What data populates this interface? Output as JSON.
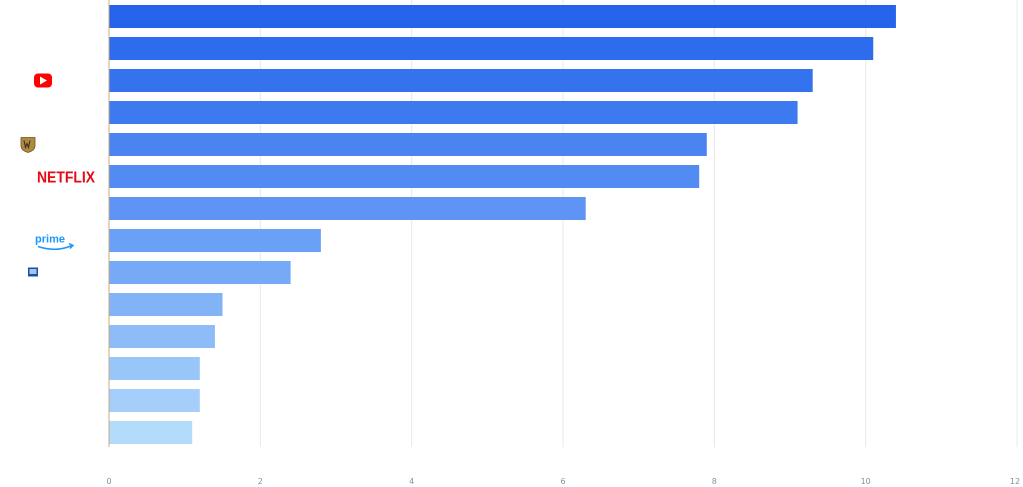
{
  "chart_data": {
    "type": "bar",
    "orientation": "horizontal",
    "categories": [
      "",
      "",
      "YouTube",
      "",
      "Warner Bros",
      "Netflix",
      "",
      "Prime",
      "",
      "",
      "",
      "",
      "",
      ""
    ],
    "values": [
      10.4,
      10.1,
      9.3,
      9.1,
      7.9,
      7.8,
      6.3,
      2.8,
      2.4,
      1.5,
      1.4,
      1.2,
      1.2,
      1.1
    ],
    "xlim": [
      0,
      12
    ],
    "x_ticks": [
      "0",
      "2",
      "4",
      "6",
      "8",
      "10",
      "12"
    ],
    "grid": true,
    "title": "",
    "xlabel": "",
    "ylabel": "",
    "bar_colors": [
      "#2563eb",
      "#2d6ded",
      "#3573ee",
      "#3d7af0",
      "#4a84f1",
      "#528bf2",
      "#5e94f3",
      "#6aa0f5",
      "#76aaf6",
      "#82b3f7",
      "#8dbcf8",
      "#99c6f9",
      "#a5cffa",
      "#b3dcfb"
    ],
    "logos": {
      "2": "youtube-logo",
      "4": "warner-bros-logo",
      "5": "netflix-logo",
      "7": "prime-video-logo",
      "8": "tv-logo"
    },
    "logo_text": {
      "netflix": "NETFLIX",
      "prime": "prime"
    }
  }
}
